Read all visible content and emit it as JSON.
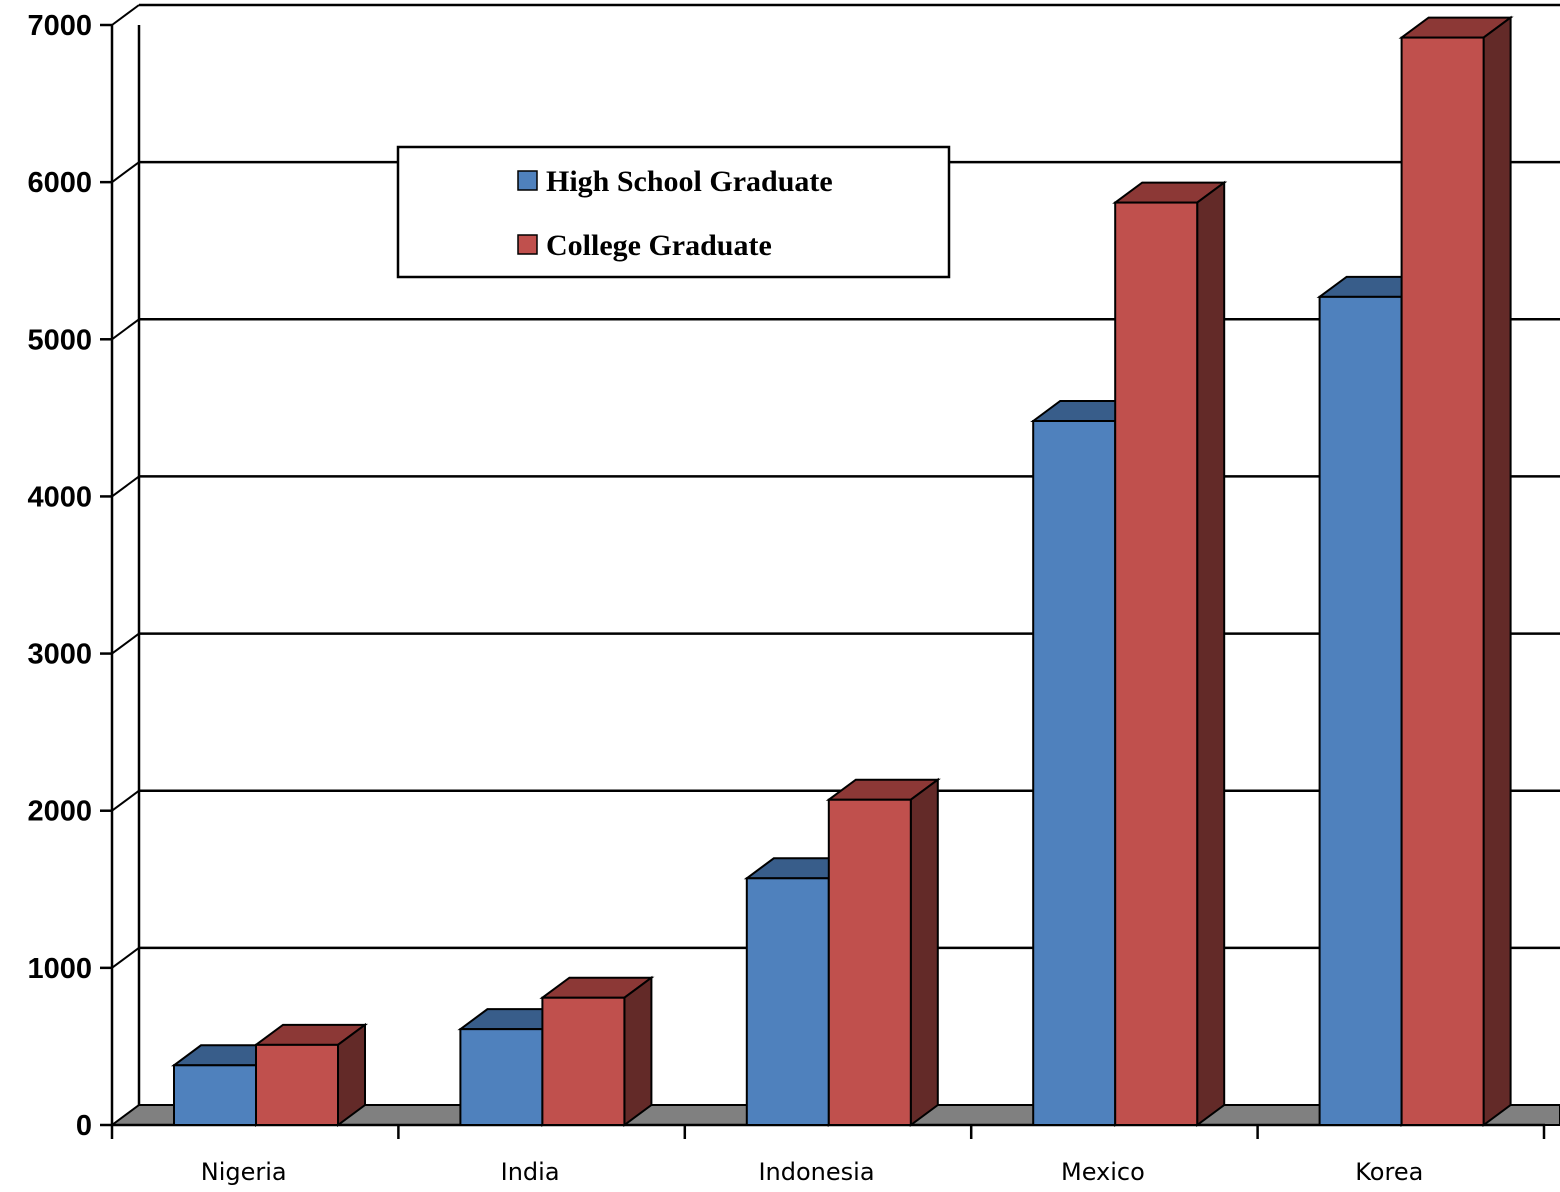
{
  "chart_data": {
    "type": "bar",
    "title": "",
    "xlabel": "",
    "ylabel": "",
    "three_d": true,
    "categories": [
      "Nigeria",
      "India",
      "Indonesia",
      "Mexico",
      "Korea"
    ],
    "series": [
      {
        "name": "High School Graduate",
        "values": [
          380,
          610,
          1570,
          4480,
          5270
        ]
      },
      {
        "name": "College Graduate",
        "values": [
          510,
          810,
          2070,
          5870,
          6920
        ]
      }
    ],
    "ylim": [
      0,
      7000
    ],
    "yticks": [
      "0",
      "1000",
      "2000",
      "3000",
      "4000",
      "5000",
      "6000",
      "7000"
    ],
    "grid": true,
    "legend_position": "top-center"
  },
  "colors": {
    "high_school_front": "#4f81bd",
    "high_school_top": "#385d8a",
    "college_front": "#c0504d",
    "college_top": "#8c3836",
    "college_side": "#632a28",
    "floor": "#808080"
  }
}
